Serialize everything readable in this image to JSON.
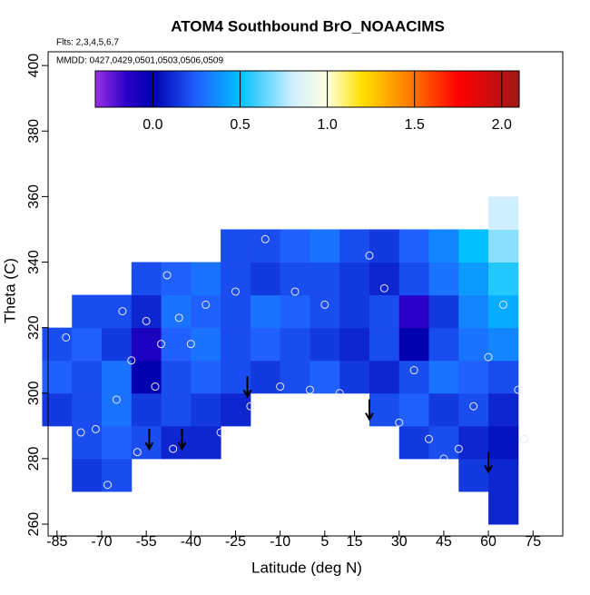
{
  "chart_data": {
    "type": "heatmap",
    "title": "ATOM4 Southbound BrO_NOAACIMS",
    "annotations": [
      "Flts: 2,3,4,5,6,7",
      "MMDD: 0427,0429,0501,0503,0506,0509"
    ],
    "x_label": "Latitude (deg N)",
    "y_label": "Theta (C)",
    "xlim": [
      -88,
      85
    ],
    "ylim": [
      256.4,
      404.2
    ],
    "xticks": [
      -85,
      -70,
      -55,
      -40,
      -25,
      -10,
      5,
      15,
      30,
      45,
      60,
      75
    ],
    "yticks": [
      260,
      280,
      300,
      320,
      340,
      360,
      380,
      400
    ],
    "x": [
      -85,
      -75,
      -65,
      -55,
      -45,
      -35,
      -25,
      -15,
      -5,
      5,
      15,
      25,
      35,
      45,
      55,
      65
    ],
    "y": [
      265,
      275,
      285,
      295,
      305,
      315,
      325,
      335,
      345,
      355
    ],
    "z": [
      [
        null,
        null,
        null,
        null,
        null,
        null,
        null,
        null,
        null,
        null,
        null,
        null,
        null,
        null,
        null,
        0.1
      ],
      [
        null,
        0.15,
        0.2,
        null,
        null,
        null,
        null,
        null,
        null,
        null,
        null,
        null,
        null,
        null,
        0.15,
        0.1
      ],
      [
        null,
        0.2,
        0.25,
        0.2,
        0.1,
        0.1,
        null,
        null,
        null,
        null,
        null,
        null,
        0.15,
        0.2,
        0.1,
        0.05
      ],
      [
        0.15,
        0.2,
        0.3,
        0.15,
        0.2,
        0.15,
        0.1,
        null,
        null,
        null,
        null,
        0.2,
        0.25,
        0.15,
        0.2,
        0.1
      ],
      [
        0.25,
        0.2,
        0.3,
        0.0,
        0.2,
        0.25,
        0.2,
        0.15,
        0.2,
        0.25,
        0.15,
        0.1,
        0.2,
        0.3,
        0.25,
        0.2
      ],
      [
        0.2,
        0.25,
        0.15,
        -0.1,
        0.25,
        0.3,
        0.2,
        0.25,
        0.2,
        0.15,
        0.1,
        0.2,
        0.0,
        0.2,
        0.3,
        0.35
      ],
      [
        null,
        0.2,
        0.2,
        0.1,
        0.3,
        0.25,
        0.2,
        0.3,
        0.25,
        0.2,
        0.15,
        0.2,
        -0.15,
        0.15,
        0.35,
        0.45
      ],
      [
        null,
        null,
        null,
        0.2,
        0.25,
        0.3,
        0.2,
        0.15,
        0.2,
        0.2,
        0.15,
        0.1,
        0.2,
        0.3,
        0.4,
        0.55
      ],
      [
        null,
        null,
        null,
        null,
        null,
        null,
        0.2,
        0.2,
        0.25,
        0.3,
        0.2,
        0.15,
        0.25,
        0.35,
        0.5,
        0.7
      ],
      [
        null,
        null,
        null,
        null,
        null,
        null,
        null,
        null,
        null,
        null,
        null,
        null,
        null,
        null,
        null,
        0.8
      ]
    ],
    "clim": [
      -0.33,
      2.1
    ],
    "cticks": [
      {
        "value": 0,
        "label": "0.0"
      },
      {
        "value": 0.5,
        "label": "0.5"
      },
      {
        "value": 1,
        "label": "1.0"
      },
      {
        "value": 1.5,
        "label": "1.5"
      },
      {
        "value": 2,
        "label": "2.0"
      }
    ],
    "colorscale": [
      [
        -0.33,
        "#9a30e8"
      ],
      [
        -0.15,
        "#2a00c8"
      ],
      [
        0,
        "#0000b0"
      ],
      [
        0.25,
        "#2060ff"
      ],
      [
        0.5,
        "#00c0ff"
      ],
      [
        0.8,
        "#cfeeff"
      ],
      [
        1.0,
        "#ffffe0"
      ],
      [
        1.2,
        "#ffe000"
      ],
      [
        1.5,
        "#ff7000"
      ],
      [
        1.75,
        "#ff0000"
      ],
      [
        2.1,
        "#a01818"
      ]
    ],
    "observations": {
      "x": [
        -82,
        -77,
        -72,
        -68,
        -65,
        -63,
        -60,
        -58,
        -55,
        -52,
        -50,
        -48,
        -46,
        -44,
        -40,
        -35,
        -30,
        -25,
        -20,
        -15,
        -10,
        -5,
        0,
        5,
        10,
        20,
        25,
        30,
        35,
        40,
        45,
        50,
        55,
        60,
        65,
        70,
        72
      ],
      "y": [
        317,
        288,
        289,
        272,
        298,
        325,
        310,
        282,
        322,
        302,
        315,
        336,
        283,
        323,
        315,
        327,
        288,
        331,
        296,
        347,
        302,
        331,
        301,
        327,
        300,
        342,
        332,
        291,
        307,
        286,
        280,
        283,
        296,
        311,
        327,
        301,
        286
      ]
    },
    "arrows": {
      "x": [
        -54,
        -43,
        -21,
        20,
        60
      ],
      "y": [
        283,
        283,
        299,
        292,
        276
      ]
    }
  }
}
